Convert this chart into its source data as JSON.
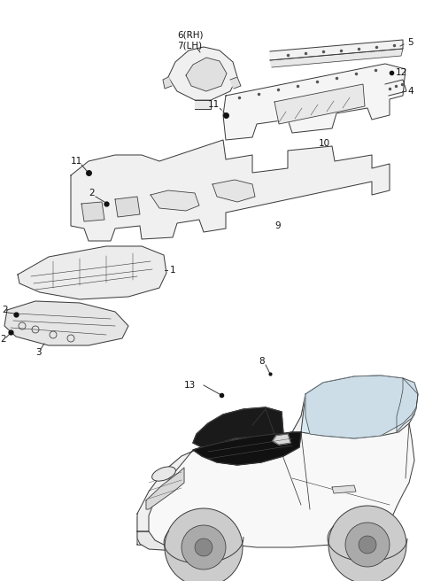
{
  "bg_color": "#ffffff",
  "lc": "#3a3a3a",
  "lw": 0.7,
  "fig_w": 4.8,
  "fig_h": 6.56,
  "dpi": 100
}
